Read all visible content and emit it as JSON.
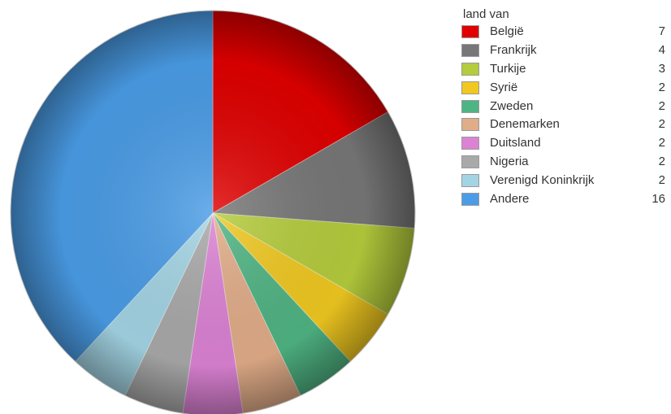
{
  "chart_data": {
    "type": "pie",
    "legend_title": "land van",
    "legend_position": "right",
    "start_angle_deg": 0,
    "direction": "clockwise",
    "slices": [
      {
        "label": "België",
        "value": 7,
        "color": "#e00000"
      },
      {
        "label": "Frankrijk",
        "value": 4,
        "color": "#777777"
      },
      {
        "label": "Turkije",
        "value": 3,
        "color": "#b5cc3c"
      },
      {
        "label": "Syrië",
        "value": 2,
        "color": "#f0c820"
      },
      {
        "label": "Zweden",
        "value": 2,
        "color": "#4fb483"
      },
      {
        "label": "Denemarken",
        "value": 2,
        "color": "#e1ac88"
      },
      {
        "label": "Duitsland",
        "value": 2,
        "color": "#dc82d4"
      },
      {
        "label": "Nigeria",
        "value": 2,
        "color": "#a9a9a9"
      },
      {
        "label": "Verenigd Koninkrijk",
        "value": 2,
        "color": "#a3d4e4"
      },
      {
        "label": "Andere",
        "value": 16,
        "color": "#4a9ce6"
      }
    ]
  }
}
